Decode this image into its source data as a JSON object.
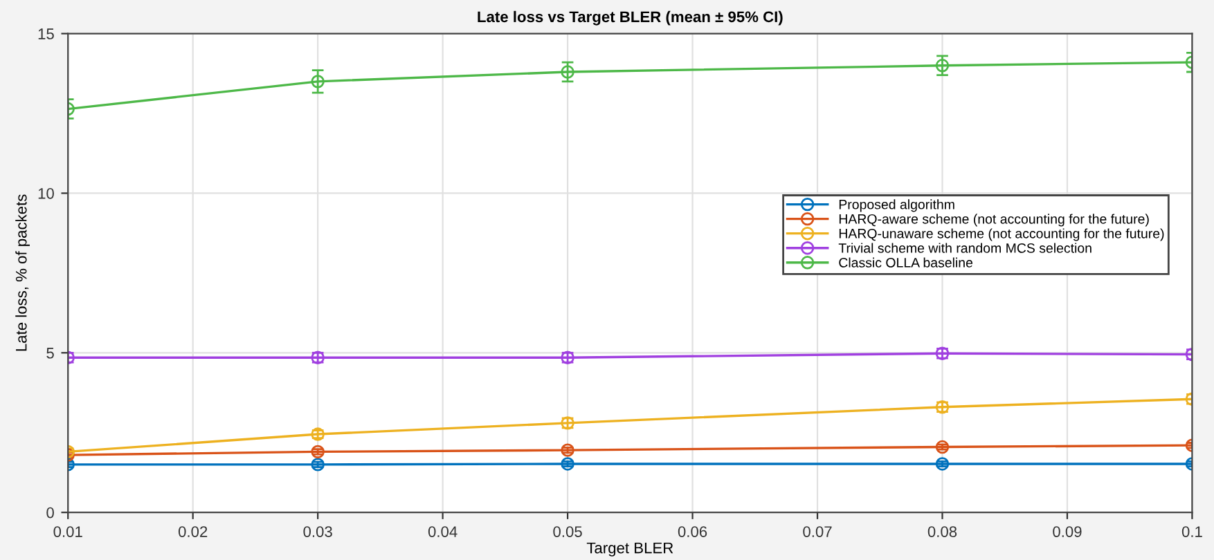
{
  "chart_data": {
    "type": "line",
    "title": "Late loss vs Target BLER (mean ± 95% CI)",
    "xlabel": "Target BLER",
    "ylabel": "Late loss, % of packets",
    "x": [
      0.01,
      0.03,
      0.05,
      0.08,
      0.1
    ],
    "series": [
      {
        "name": "Proposed algorithm",
        "color": "#0072bd",
        "values": [
          1.5,
          1.5,
          1.52,
          1.52,
          1.52
        ],
        "errors": [
          0.08,
          0.08,
          0.08,
          0.08,
          0.08
        ]
      },
      {
        "name": "HARQ-aware scheme (not accounting for the future)",
        "color": "#d95319",
        "values": [
          1.8,
          1.9,
          1.95,
          2.05,
          2.1
        ],
        "errors": [
          0.08,
          0.08,
          0.08,
          0.08,
          0.08
        ]
      },
      {
        "name": "HARQ-unaware scheme (not accounting for the future)",
        "color": "#edb120",
        "values": [
          1.9,
          2.45,
          2.8,
          3.3,
          3.55
        ],
        "errors": [
          0.1,
          0.12,
          0.15,
          0.15,
          0.15
        ]
      },
      {
        "name": "Trivial scheme with random MCS selection",
        "color": "#a040e0",
        "values": [
          4.85,
          4.85,
          4.85,
          4.98,
          4.95
        ],
        "errors": [
          0.15,
          0.15,
          0.15,
          0.15,
          0.15
        ]
      },
      {
        "name": "Classic OLLA baseline",
        "color": "#4db848",
        "values": [
          12.64,
          13.5,
          13.8,
          14.0,
          14.1
        ],
        "errors": [
          0.3,
          0.35,
          0.3,
          0.3,
          0.3
        ]
      }
    ],
    "xlim": [
      0.01,
      0.1
    ],
    "xticks": [
      0.01,
      0.02,
      0.03,
      0.04,
      0.05,
      0.06,
      0.07,
      0.08,
      0.09,
      0.1
    ],
    "ylim": [
      0,
      15
    ],
    "yticks": [
      0,
      5,
      10,
      15
    ],
    "grid": true,
    "legend": "center right",
    "marker": "circle",
    "line_style": "solid"
  }
}
